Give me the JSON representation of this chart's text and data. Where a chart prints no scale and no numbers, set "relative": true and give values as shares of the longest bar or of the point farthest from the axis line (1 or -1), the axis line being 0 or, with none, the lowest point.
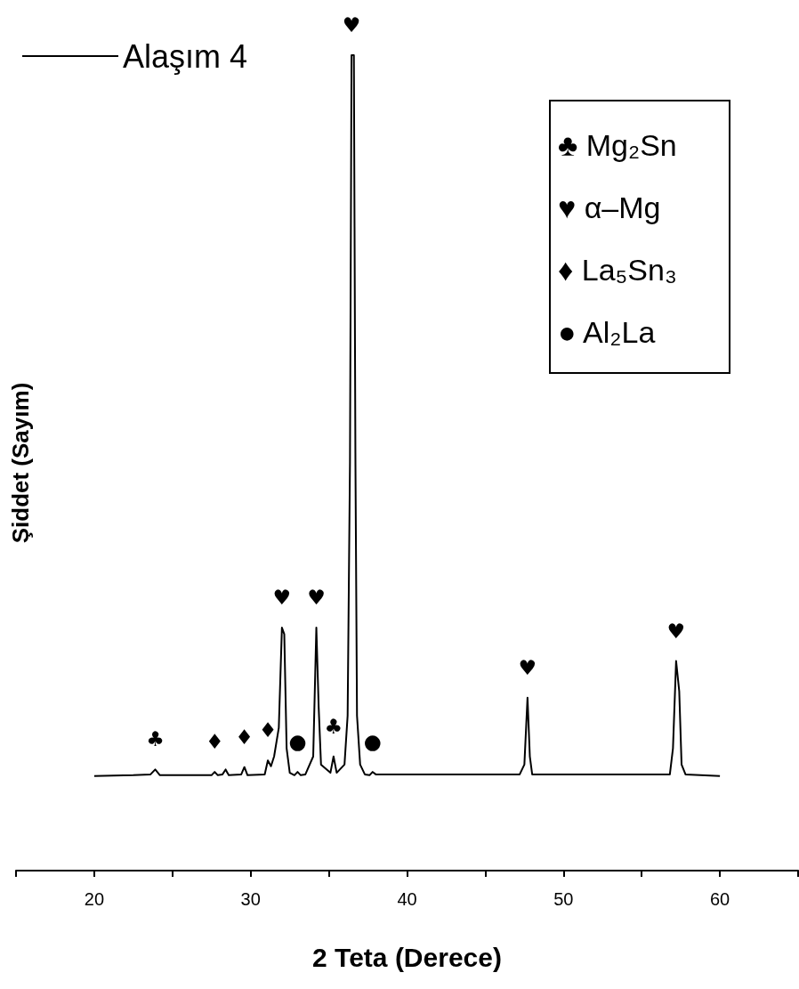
{
  "chart_data": {
    "type": "line",
    "relative": true,
    "xlabel": "2 Teta (Derece)",
    "ylabel": "Şiddet (Sayım)",
    "xlim": [
      15,
      65
    ],
    "xticks": [
      {
        "value": 15,
        "label": null
      },
      20,
      {
        "value": 25,
        "label": null
      },
      30,
      {
        "value": 35,
        "label": null
      },
      40,
      {
        "value": 45,
        "label": null
      },
      50,
      {
        "value": 55,
        "label": null
      },
      60,
      {
        "value": 65,
        "label": null
      }
    ],
    "x": [
      20,
      22.5,
      23.6,
      23.9,
      24.2,
      27.5,
      27.7,
      27.9,
      28.2,
      28.4,
      28.6,
      29.4,
      29.6,
      29.8,
      30.9,
      31.1,
      31.3,
      31.5,
      31.8,
      32.0,
      32.15,
      32.3,
      32.5,
      32.8,
      33.0,
      33.2,
      33.5,
      34.0,
      34.2,
      34.35,
      34.5,
      35.1,
      35.3,
      35.5,
      36.0,
      36.2,
      36.35,
      36.45,
      36.6,
      36.7,
      36.8,
      37.0,
      37.3,
      37.6,
      37.8,
      38.0,
      47.2,
      47.5,
      47.7,
      47.85,
      48.0,
      56.8,
      57.0,
      57.2,
      57.4,
      57.55,
      57.8,
      60
    ],
    "series": [
      {
        "name": "Alaşım 4",
        "color": "#000000",
        "values": [
          0.116,
          0.117,
          0.118,
          0.124,
          0.117,
          0.117,
          0.121,
          0.117,
          0.118,
          0.124,
          0.117,
          0.118,
          0.127,
          0.117,
          0.118,
          0.135,
          0.128,
          0.14,
          0.175,
          0.298,
          0.29,
          0.15,
          0.12,
          0.117,
          0.121,
          0.117,
          0.118,
          0.14,
          0.298,
          0.2,
          0.13,
          0.12,
          0.14,
          0.12,
          0.13,
          0.19,
          0.5,
          1.0,
          1.0,
          0.5,
          0.19,
          0.13,
          0.118,
          0.117,
          0.121,
          0.118,
          0.118,
          0.13,
          0.212,
          0.14,
          0.118,
          0.118,
          0.15,
          0.257,
          0.22,
          0.13,
          0.118,
          0.116
        ]
      }
    ],
    "legend": "top left",
    "marker": "none",
    "line_style": "solid",
    "grid": false,
    "annotations": [
      {
        "text": "♣",
        "x": 23.9,
        "y": 0.124
      },
      {
        "text": "♦",
        "x": 27.7,
        "y": 0.121
      },
      {
        "text": "♦",
        "x": 29.6,
        "y": 0.127
      },
      {
        "text": "♦",
        "x": 31.1,
        "y": 0.135
      },
      {
        "text": "♥",
        "x": 32.0,
        "y": 0.298
      },
      {
        "text": "●",
        "x": 33.0,
        "y": 0.121
      },
      {
        "text": "♥",
        "x": 34.2,
        "y": 0.298
      },
      {
        "text": "♣",
        "x": 35.3,
        "y": 0.14
      },
      {
        "text": "♥",
        "x": 36.45,
        "y": 1.0
      },
      {
        "text": "●",
        "x": 37.8,
        "y": 0.121
      },
      {
        "text": "♥",
        "x": 47.7,
        "y": 0.212
      },
      {
        "text": "♥",
        "x": 57.2,
        "y": 0.257
      },
      "♣ Mg₂Sn",
      "♥ α–Mg",
      "♦ La₅Sn₃",
      "● Al₂La"
    ]
  }
}
